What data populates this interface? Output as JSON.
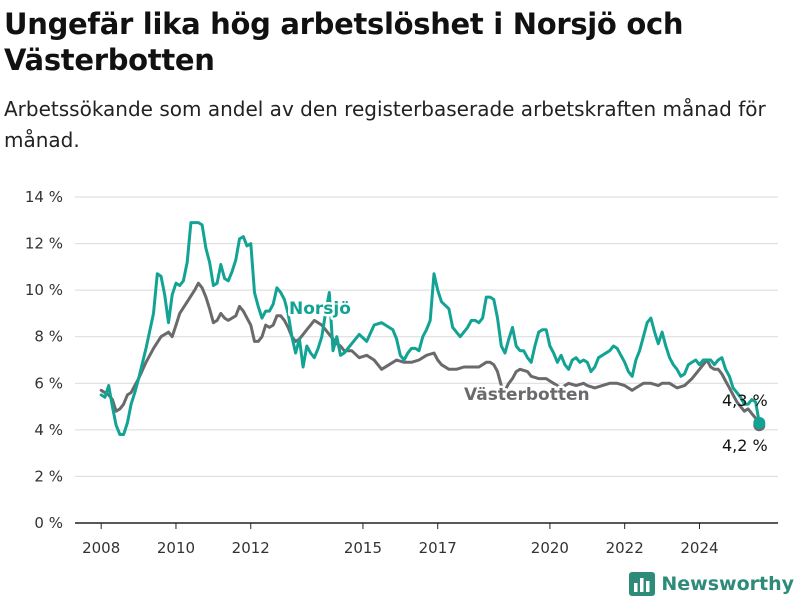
{
  "title": "Ungefär lika hög arbetslöshet i Norsjö och Västerbotten",
  "subtitle": "Arbetssökande som andel av den registerbaserade arbetskraften månad för månad.",
  "brand": {
    "name": "Newsworthy",
    "icon": "bar-chart-logo-icon"
  },
  "colors": {
    "norsjo": "#13a394",
    "vasterbotten": "#6a6a6d",
    "grid": "#d9d9d9",
    "axis": "#222222"
  },
  "chart_data": {
    "type": "line",
    "grid": true,
    "xlabel": "",
    "ylabel": "",
    "ylim": [
      0,
      14
    ],
    "xlim": [
      2007.3,
      2026.1
    ],
    "y_ticks": [
      0,
      2,
      4,
      6,
      8,
      10,
      12,
      14
    ],
    "y_tick_labels": [
      "0 %",
      "2 %",
      "4 %",
      "6 %",
      "8 %",
      "10 %",
      "12 %",
      "14 %"
    ],
    "x_ticks": [
      2008,
      2010,
      2012,
      2015,
      2017,
      2020,
      2022,
      2024
    ],
    "x_tick_labels": [
      "2008",
      "2010",
      "2012",
      "2015",
      "2017",
      "2020",
      "2022",
      "2024"
    ],
    "series": [
      {
        "key": "norsjo",
        "name": "Norsjö",
        "end_label": "4,3 %",
        "points": [
          [
            2008.0,
            5.5
          ],
          [
            2008.1,
            5.4
          ],
          [
            2008.2,
            5.9
          ],
          [
            2008.3,
            5.0
          ],
          [
            2008.4,
            4.2
          ],
          [
            2008.5,
            3.8
          ],
          [
            2008.6,
            3.8
          ],
          [
            2008.7,
            4.3
          ],
          [
            2008.8,
            5.1
          ],
          [
            2008.9,
            5.6
          ],
          [
            2009.0,
            6.2
          ],
          [
            2009.2,
            7.5
          ],
          [
            2009.4,
            9.0
          ],
          [
            2009.5,
            10.7
          ],
          [
            2009.6,
            10.6
          ],
          [
            2009.7,
            9.8
          ],
          [
            2009.8,
            8.6
          ],
          [
            2009.9,
            9.8
          ],
          [
            2010.0,
            10.3
          ],
          [
            2010.1,
            10.2
          ],
          [
            2010.2,
            10.4
          ],
          [
            2010.3,
            11.2
          ],
          [
            2010.4,
            12.9
          ],
          [
            2010.5,
            12.9
          ],
          [
            2010.6,
            12.9
          ],
          [
            2010.7,
            12.8
          ],
          [
            2010.8,
            11.8
          ],
          [
            2010.9,
            11.2
          ],
          [
            2011.0,
            10.2
          ],
          [
            2011.1,
            10.3
          ],
          [
            2011.2,
            11.1
          ],
          [
            2011.3,
            10.5
          ],
          [
            2011.4,
            10.4
          ],
          [
            2011.5,
            10.8
          ],
          [
            2011.6,
            11.3
          ],
          [
            2011.7,
            12.2
          ],
          [
            2011.8,
            12.3
          ],
          [
            2011.9,
            11.9
          ],
          [
            2012.0,
            12.0
          ],
          [
            2012.1,
            9.9
          ],
          [
            2012.2,
            9.3
          ],
          [
            2012.3,
            8.8
          ],
          [
            2012.4,
            9.1
          ],
          [
            2012.5,
            9.1
          ],
          [
            2012.6,
            9.4
          ],
          [
            2012.7,
            10.1
          ],
          [
            2012.8,
            9.9
          ],
          [
            2012.9,
            9.6
          ],
          [
            2013.0,
            9.0
          ],
          [
            2013.1,
            8.0
          ],
          [
            2013.2,
            7.3
          ],
          [
            2013.3,
            7.9
          ],
          [
            2013.4,
            6.7
          ],
          [
            2013.5,
            7.6
          ],
          [
            2013.6,
            7.3
          ],
          [
            2013.7,
            7.1
          ],
          [
            2013.8,
            7.5
          ],
          [
            2013.9,
            8.0
          ],
          [
            2014.0,
            9.0
          ],
          [
            2014.1,
            9.9
          ],
          [
            2014.2,
            7.4
          ],
          [
            2014.3,
            8.0
          ],
          [
            2014.4,
            7.2
          ],
          [
            2014.5,
            7.3
          ],
          [
            2014.7,
            7.7
          ],
          [
            2014.9,
            8.1
          ],
          [
            2015.1,
            7.8
          ],
          [
            2015.3,
            8.5
          ],
          [
            2015.5,
            8.6
          ],
          [
            2015.7,
            8.4
          ],
          [
            2015.8,
            8.3
          ],
          [
            2015.9,
            7.9
          ],
          [
            2016.0,
            7.2
          ],
          [
            2016.1,
            7.0
          ],
          [
            2016.2,
            7.3
          ],
          [
            2016.3,
            7.5
          ],
          [
            2016.4,
            7.5
          ],
          [
            2016.5,
            7.4
          ],
          [
            2016.6,
            8.0
          ],
          [
            2016.7,
            8.3
          ],
          [
            2016.8,
            8.7
          ],
          [
            2016.9,
            10.7
          ],
          [
            2017.0,
            10.0
          ],
          [
            2017.1,
            9.5
          ],
          [
            2017.3,
            9.2
          ],
          [
            2017.4,
            8.4
          ],
          [
            2017.6,
            8.0
          ],
          [
            2017.8,
            8.4
          ],
          [
            2017.9,
            8.7
          ],
          [
            2018.0,
            8.7
          ],
          [
            2018.1,
            8.6
          ],
          [
            2018.2,
            8.8
          ],
          [
            2018.3,
            9.7
          ],
          [
            2018.4,
            9.7
          ],
          [
            2018.5,
            9.6
          ],
          [
            2018.6,
            8.8
          ],
          [
            2018.7,
            7.6
          ],
          [
            2018.8,
            7.3
          ],
          [
            2018.9,
            7.9
          ],
          [
            2019.0,
            8.4
          ],
          [
            2019.1,
            7.6
          ],
          [
            2019.2,
            7.4
          ],
          [
            2019.3,
            7.4
          ],
          [
            2019.4,
            7.1
          ],
          [
            2019.5,
            6.9
          ],
          [
            2019.6,
            7.6
          ],
          [
            2019.7,
            8.2
          ],
          [
            2019.8,
            8.3
          ],
          [
            2019.9,
            8.3
          ],
          [
            2020.0,
            7.6
          ],
          [
            2020.1,
            7.3
          ],
          [
            2020.2,
            6.9
          ],
          [
            2020.3,
            7.2
          ],
          [
            2020.4,
            6.8
          ],
          [
            2020.5,
            6.6
          ],
          [
            2020.6,
            7.0
          ],
          [
            2020.7,
            7.1
          ],
          [
            2020.8,
            6.9
          ],
          [
            2020.9,
            7.0
          ],
          [
            2021.0,
            6.9
          ],
          [
            2021.1,
            6.5
          ],
          [
            2021.2,
            6.7
          ],
          [
            2021.3,
            7.1
          ],
          [
            2021.4,
            7.2
          ],
          [
            2021.6,
            7.4
          ],
          [
            2021.7,
            7.6
          ],
          [
            2021.8,
            7.5
          ],
          [
            2021.9,
            7.2
          ],
          [
            2022.0,
            6.9
          ],
          [
            2022.1,
            6.5
          ],
          [
            2022.2,
            6.3
          ],
          [
            2022.3,
            7.0
          ],
          [
            2022.4,
            7.4
          ],
          [
            2022.5,
            8.0
          ],
          [
            2022.6,
            8.6
          ],
          [
            2022.7,
            8.8
          ],
          [
            2022.8,
            8.2
          ],
          [
            2022.9,
            7.7
          ],
          [
            2023.0,
            8.2
          ],
          [
            2023.1,
            7.6
          ],
          [
            2023.2,
            7.1
          ],
          [
            2023.3,
            6.8
          ],
          [
            2023.4,
            6.6
          ],
          [
            2023.5,
            6.3
          ],
          [
            2023.6,
            6.4
          ],
          [
            2023.7,
            6.8
          ],
          [
            2023.8,
            6.9
          ],
          [
            2023.9,
            7.0
          ],
          [
            2024.0,
            6.8
          ],
          [
            2024.1,
            7.0
          ],
          [
            2024.2,
            7.0
          ],
          [
            2024.3,
            7.0
          ],
          [
            2024.4,
            6.8
          ],
          [
            2024.5,
            7.0
          ],
          [
            2024.6,
            7.1
          ],
          [
            2024.7,
            6.6
          ],
          [
            2024.8,
            6.3
          ],
          [
            2024.9,
            5.8
          ],
          [
            2025.0,
            5.6
          ],
          [
            2025.1,
            5.4
          ],
          [
            2025.2,
            5.1
          ],
          [
            2025.3,
            5.1
          ],
          [
            2025.4,
            5.3
          ],
          [
            2025.5,
            5.2
          ],
          [
            2025.6,
            4.3
          ]
        ]
      },
      {
        "key": "vasterbotten",
        "name": "Västerbotten",
        "end_label": "4,2 %",
        "points": [
          [
            2008.0,
            5.7
          ],
          [
            2008.1,
            5.6
          ],
          [
            2008.2,
            5.5
          ],
          [
            2008.3,
            5.3
          ],
          [
            2008.4,
            4.8
          ],
          [
            2008.5,
            4.9
          ],
          [
            2008.6,
            5.1
          ],
          [
            2008.7,
            5.5
          ],
          [
            2008.8,
            5.6
          ],
          [
            2008.9,
            5.9
          ],
          [
            2009.0,
            6.2
          ],
          [
            2009.2,
            6.9
          ],
          [
            2009.4,
            7.5
          ],
          [
            2009.6,
            8.0
          ],
          [
            2009.8,
            8.2
          ],
          [
            2009.9,
            8.0
          ],
          [
            2010.0,
            8.5
          ],
          [
            2010.1,
            9.0
          ],
          [
            2010.3,
            9.5
          ],
          [
            2010.5,
            10.0
          ],
          [
            2010.6,
            10.3
          ],
          [
            2010.7,
            10.1
          ],
          [
            2010.8,
            9.7
          ],
          [
            2010.9,
            9.2
          ],
          [
            2011.0,
            8.6
          ],
          [
            2011.1,
            8.7
          ],
          [
            2011.2,
            9.0
          ],
          [
            2011.3,
            8.8
          ],
          [
            2011.4,
            8.7
          ],
          [
            2011.6,
            8.9
          ],
          [
            2011.7,
            9.3
          ],
          [
            2011.8,
            9.1
          ],
          [
            2011.9,
            8.8
          ],
          [
            2012.0,
            8.5
          ],
          [
            2012.1,
            7.8
          ],
          [
            2012.2,
            7.8
          ],
          [
            2012.3,
            8.0
          ],
          [
            2012.4,
            8.5
          ],
          [
            2012.5,
            8.4
          ],
          [
            2012.6,
            8.5
          ],
          [
            2012.7,
            8.9
          ],
          [
            2012.8,
            8.9
          ],
          [
            2012.9,
            8.7
          ],
          [
            2013.0,
            8.4
          ],
          [
            2013.1,
            8.0
          ],
          [
            2013.2,
            7.8
          ],
          [
            2013.3,
            7.9
          ],
          [
            2013.4,
            8.1
          ],
          [
            2013.5,
            8.3
          ],
          [
            2013.6,
            8.5
          ],
          [
            2013.7,
            8.7
          ],
          [
            2013.8,
            8.6
          ],
          [
            2013.9,
            8.5
          ],
          [
            2014.0,
            8.3
          ],
          [
            2014.1,
            8.1
          ],
          [
            2014.2,
            7.9
          ],
          [
            2014.3,
            7.7
          ],
          [
            2014.4,
            7.6
          ],
          [
            2014.5,
            7.4
          ],
          [
            2014.7,
            7.4
          ],
          [
            2014.9,
            7.1
          ],
          [
            2015.1,
            7.2
          ],
          [
            2015.3,
            7.0
          ],
          [
            2015.5,
            6.6
          ],
          [
            2015.7,
            6.8
          ],
          [
            2015.9,
            7.0
          ],
          [
            2016.1,
            6.9
          ],
          [
            2016.3,
            6.9
          ],
          [
            2016.5,
            7.0
          ],
          [
            2016.7,
            7.2
          ],
          [
            2016.9,
            7.3
          ],
          [
            2017.0,
            7.0
          ],
          [
            2017.1,
            6.8
          ],
          [
            2017.3,
            6.6
          ],
          [
            2017.5,
            6.6
          ],
          [
            2017.7,
            6.7
          ],
          [
            2017.9,
            6.7
          ],
          [
            2018.1,
            6.7
          ],
          [
            2018.3,
            6.9
          ],
          [
            2018.4,
            6.9
          ],
          [
            2018.5,
            6.8
          ],
          [
            2018.6,
            6.5
          ],
          [
            2018.7,
            5.9
          ],
          [
            2018.8,
            5.7
          ],
          [
            2018.9,
            6.0
          ],
          [
            2019.0,
            6.2
          ],
          [
            2019.1,
            6.5
          ],
          [
            2019.2,
            6.6
          ],
          [
            2019.4,
            6.5
          ],
          [
            2019.5,
            6.3
          ],
          [
            2019.7,
            6.2
          ],
          [
            2019.9,
            6.2
          ],
          [
            2020.0,
            6.1
          ],
          [
            2020.1,
            6.0
          ],
          [
            2020.3,
            5.8
          ],
          [
            2020.5,
            6.0
          ],
          [
            2020.7,
            5.9
          ],
          [
            2020.9,
            6.0
          ],
          [
            2021.0,
            5.9
          ],
          [
            2021.2,
            5.8
          ],
          [
            2021.4,
            5.9
          ],
          [
            2021.6,
            6.0
          ],
          [
            2021.8,
            6.0
          ],
          [
            2022.0,
            5.9
          ],
          [
            2022.2,
            5.7
          ],
          [
            2022.3,
            5.8
          ],
          [
            2022.5,
            6.0
          ],
          [
            2022.7,
            6.0
          ],
          [
            2022.9,
            5.9
          ],
          [
            2023.0,
            6.0
          ],
          [
            2023.2,
            6.0
          ],
          [
            2023.4,
            5.8
          ],
          [
            2023.6,
            5.9
          ],
          [
            2023.8,
            6.2
          ],
          [
            2024.0,
            6.6
          ],
          [
            2024.1,
            6.8
          ],
          [
            2024.2,
            7.0
          ],
          [
            2024.3,
            6.7
          ],
          [
            2024.4,
            6.6
          ],
          [
            2024.5,
            6.6
          ],
          [
            2024.6,
            6.4
          ],
          [
            2024.7,
            6.1
          ],
          [
            2024.8,
            5.8
          ],
          [
            2024.9,
            5.5
          ],
          [
            2025.0,
            5.2
          ],
          [
            2025.1,
            5.0
          ],
          [
            2025.2,
            4.8
          ],
          [
            2025.3,
            4.9
          ],
          [
            2025.4,
            4.7
          ],
          [
            2025.5,
            4.5
          ],
          [
            2025.6,
            4.2
          ]
        ]
      }
    ]
  }
}
